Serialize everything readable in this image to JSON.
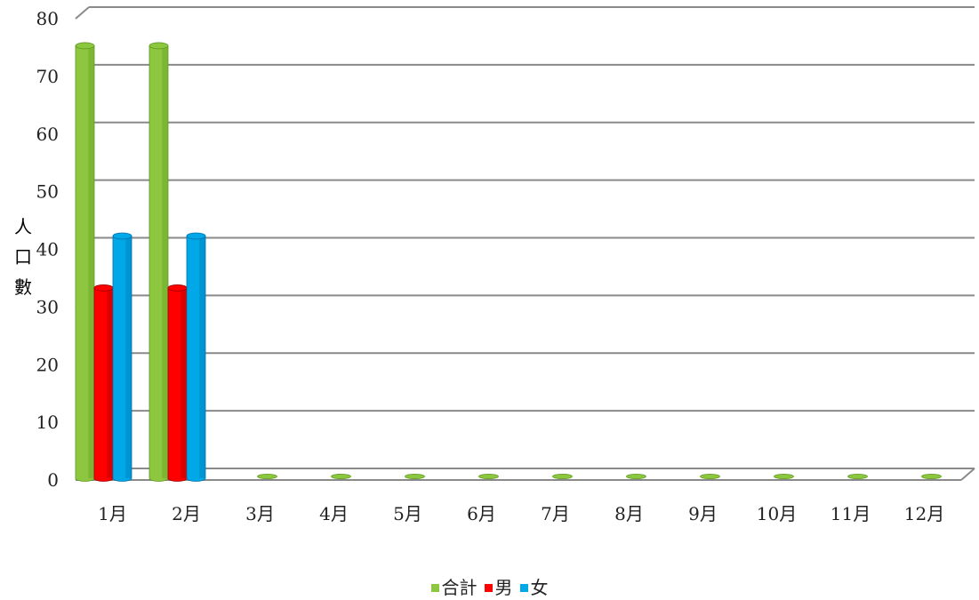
{
  "chart_data": {
    "type": "bar",
    "categories": [
      "1月",
      "2月",
      "3月",
      "4月",
      "5月",
      "6月",
      "7月",
      "8月",
      "9月",
      "10月",
      "11月",
      "12月"
    ],
    "series": [
      {
        "name": "合計",
        "values": [
          75,
          75,
          0,
          0,
          0,
          0,
          0,
          0,
          0,
          0,
          0,
          0
        ],
        "color": "#8dc63f",
        "dark": "#5e9a1e"
      },
      {
        "name": "男",
        "values": [
          33,
          33,
          0,
          0,
          0,
          0,
          0,
          0,
          0,
          0,
          0,
          0
        ],
        "color": "#ff0000",
        "dark": "#a00000"
      },
      {
        "name": "女",
        "values": [
          42,
          42,
          0,
          0,
          0,
          0,
          0,
          0,
          0,
          0,
          0,
          0
        ],
        "color": "#00a8e8",
        "dark": "#0070a8"
      }
    ],
    "ylim": [
      0,
      80
    ],
    "yticks": [
      0,
      10,
      20,
      30,
      40,
      50,
      60,
      70,
      80
    ],
    "ylabel": "人口數",
    "xlabel": "",
    "title": "",
    "grid": true,
    "legend_position": "bottom"
  }
}
